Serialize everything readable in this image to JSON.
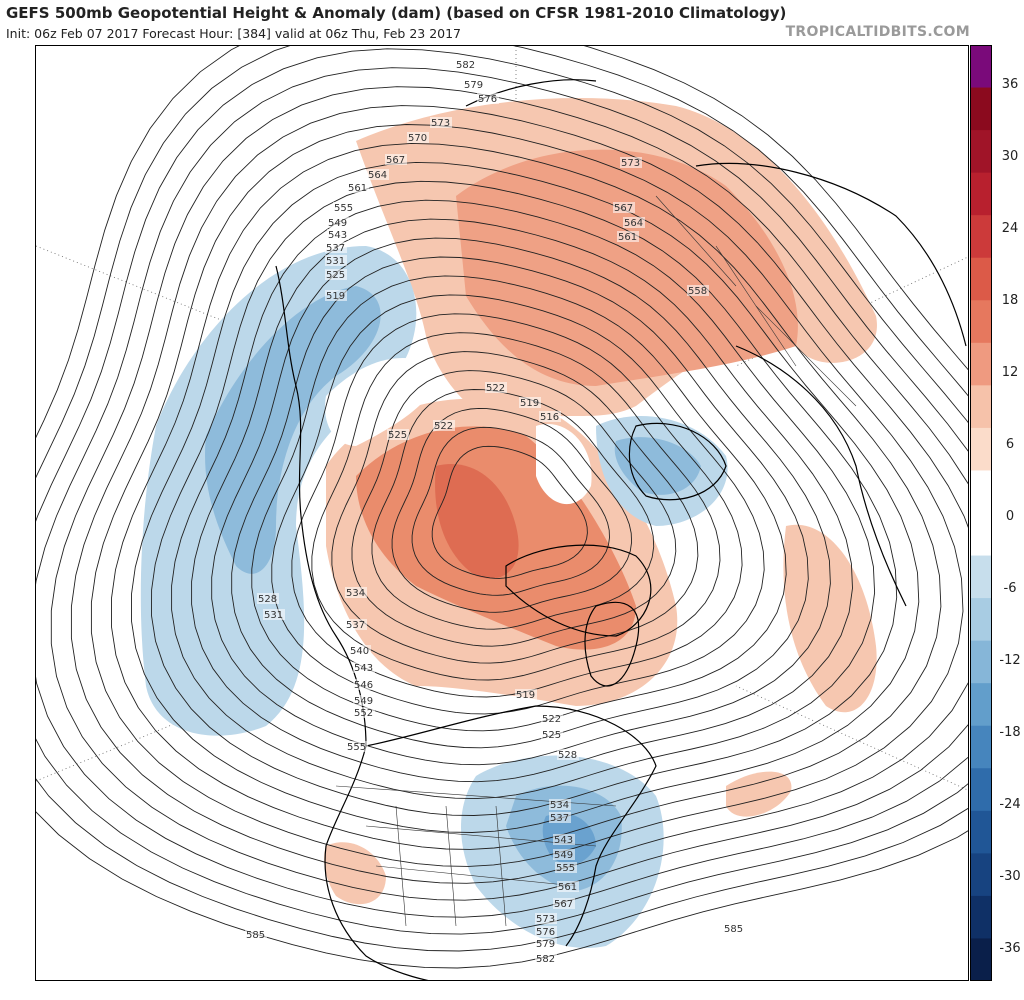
{
  "header": {
    "title": "GEFS 500mb Geopotential Height & Anomaly (dam) (based on CFSR 1981-2010 Climatology)",
    "subtitle": "Init: 06z Feb 07 2017   Forecast Hour: [384]   valid at 06z Thu, Feb 23 2017",
    "brand": "TROPICALTIDBITS.COM"
  },
  "colorbar": {
    "ticks": [
      "36",
      "30",
      "24",
      "18",
      "12",
      "6",
      "0",
      "-6",
      "-12",
      "-18",
      "-24",
      "-30",
      "-36"
    ],
    "colors": [
      "#7a0a7a",
      "#8b0a1e",
      "#a01428",
      "#b8202e",
      "#cc3a3a",
      "#dc5a48",
      "#e6785e",
      "#ef9a80",
      "#f6c2aa",
      "#fbdcca",
      "#ffffff",
      "#ffffff",
      "#c7deec",
      "#a8cce3",
      "#86b6d8",
      "#629ecb",
      "#4685bd",
      "#2f6cab",
      "#205696",
      "#174380",
      "#0f3066",
      "#0a1f4a"
    ]
  },
  "contour_labels": [
    "582",
    "579",
    "576",
    "573",
    "570",
    "567",
    "564",
    "561",
    "555",
    "549",
    "543",
    "537",
    "531",
    "525",
    "519",
    "573",
    "567",
    "564",
    "561",
    "558",
    "522",
    "519",
    "516",
    "525",
    "522",
    "534",
    "537",
    "540",
    "543",
    "546",
    "549",
    "552",
    "555",
    "528",
    "531",
    "519",
    "522",
    "525",
    "528",
    "534",
    "537",
    "543",
    "549",
    "555",
    "561",
    "567",
    "573",
    "576",
    "579",
    "582",
    "585",
    "585"
  ]
}
